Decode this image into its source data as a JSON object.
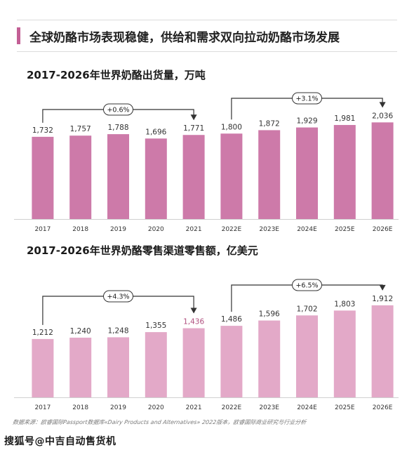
{
  "page": {
    "title": "全球奶酪市场表现稳健，供给和需求双向拉动奶酪市场发展",
    "source_note": "数据来源：欧睿国际Passport数据库«Dairy Products and Alternatives» 2022版本，欧睿国际商业研究与行业分析",
    "watermark": "搜狐号@中吉自动售货机"
  },
  "chart_data": [
    {
      "type": "bar",
      "title": "2017-2026年世界奶酪出货量，万吨",
      "categories": [
        "2017",
        "2018",
        "2019",
        "2020",
        "2021",
        "2022E",
        "2023E",
        "2024E",
        "2025E",
        "2026E"
      ],
      "values": [
        1732,
        1757,
        1788,
        1696,
        1771,
        1800,
        1872,
        1929,
        1981,
        2036
      ],
      "value_labels": [
        "1,732",
        "1,757",
        "1,788",
        "1,696",
        "1,771",
        "1,800",
        "1,872",
        "1,929",
        "1,981",
        "2,036"
      ],
      "ylim": [
        0,
        2100
      ],
      "bar_color": "#cd7aa9",
      "label_colors": [
        "#333333",
        "#333333",
        "#333333",
        "#333333",
        "#333333",
        "#333333",
        "#333333",
        "#333333",
        "#333333",
        "#333333"
      ],
      "grid": false,
      "annotations": [
        {
          "text": "+0.6%",
          "from_index": 0,
          "to_index": 4
        },
        {
          "text": "+3.1%",
          "from_index": 5,
          "to_index": 9
        }
      ]
    },
    {
      "type": "bar",
      "title": "2017-2026年世界奶酪零售渠道零售额，亿美元",
      "categories": [
        "2017",
        "2018",
        "2019",
        "2020",
        "2021",
        "2022E",
        "2023E",
        "2024E",
        "2025E",
        "2026E"
      ],
      "values": [
        1212,
        1240,
        1248,
        1355,
        1436,
        1486,
        1596,
        1702,
        1803,
        1912
      ],
      "value_labels": [
        "1,212",
        "1,240",
        "1,248",
        "1,355",
        "1,436",
        "1,486",
        "1,596",
        "1,702",
        "1,803",
        "1,912"
      ],
      "ylim": [
        0,
        2100
      ],
      "bar_color": "#e3a9c8",
      "label_colors": [
        "#333333",
        "#333333",
        "#333333",
        "#333333",
        "#b0507f",
        "#333333",
        "#333333",
        "#333333",
        "#333333",
        "#333333"
      ],
      "grid": false,
      "annotations": [
        {
          "text": "+4.3%",
          "from_index": 0,
          "to_index": 4
        },
        {
          "text": "+6.5%",
          "from_index": 5,
          "to_index": 9
        }
      ]
    }
  ]
}
